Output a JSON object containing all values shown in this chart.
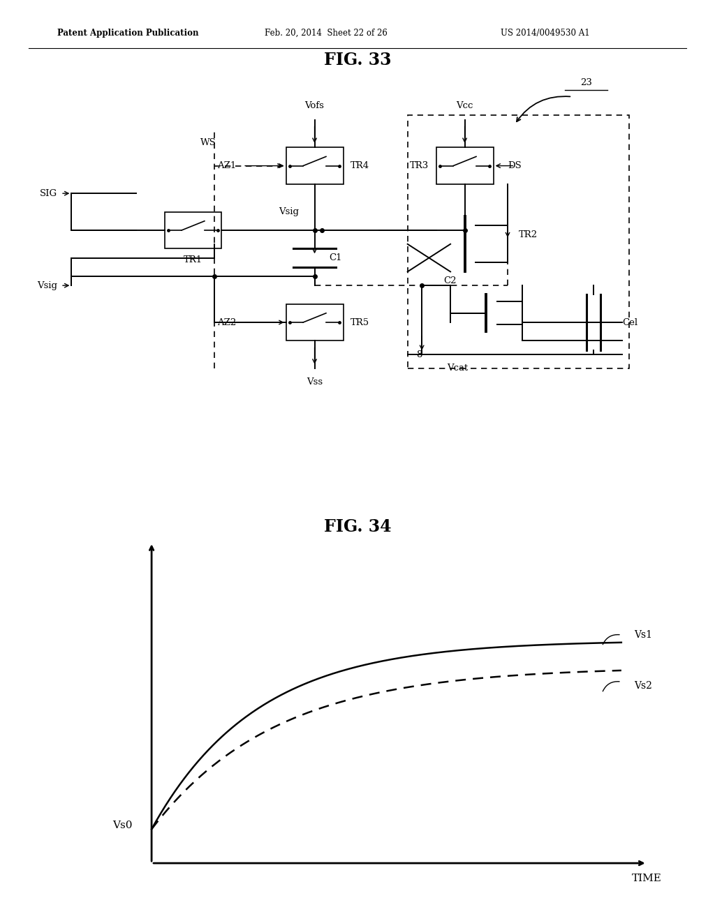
{
  "bg_color": "#ffffff",
  "header_text": "Patent Application Publication",
  "header_date": "Feb. 20, 2014  Sheet 22 of 26",
  "header_patent": "US 2014/0049530 A1",
  "fig33_title": "FIG. 33",
  "fig34_title": "FIG. 34",
  "label_23": "23",
  "label_SIG": "SIG",
  "label_Vofs": "Vofs",
  "label_Vcc": "Vcc",
  "label_DS": "DS",
  "label_WS": "WS",
  "label_AZ1": "AZ1",
  "label_AZ2": "AZ2",
  "label_TR1": "TR1",
  "label_TR2": "TR2",
  "label_TR3": "TR3",
  "label_TR4": "TR4",
  "label_TR5": "TR5",
  "label_Vsig_top": "Vsig",
  "label_Vsig_bot": "Vsig",
  "label_C1": "C1",
  "label_C2": "C2",
  "label_Cel": "Cel",
  "label_Vss": "Vss",
  "label_Vcat": "Vcat",
  "label_8": "8",
  "label_Vs0": "Vs0",
  "label_Vs1": "Vs1",
  "label_Vs2": "Vs2",
  "label_TIME": "TIME"
}
